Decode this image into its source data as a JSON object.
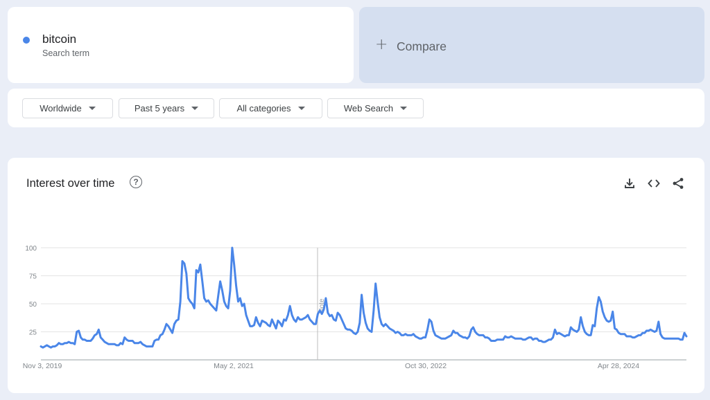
{
  "search_term": {
    "name": "bitcoin",
    "subtitle": "Search term",
    "color": "#4a86e8"
  },
  "compare": {
    "label": "Compare"
  },
  "filters": [
    {
      "label": "Worldwide"
    },
    {
      "label": "Past 5 years"
    },
    {
      "label": "All categories"
    },
    {
      "label": "Web Search"
    }
  ],
  "chart": {
    "title": "Interest over time",
    "help_icon": "help-circle-icon",
    "toolbar_icons": [
      "download-icon",
      "embed-code-icon",
      "share-icon"
    ],
    "note_marker": "Note"
  },
  "chart_data": {
    "type": "line",
    "series": [
      {
        "name": "bitcoin",
        "color": "#4a86e8",
        "values": [
          12,
          11,
          12,
          13,
          12,
          11,
          12,
          12,
          13,
          15,
          14,
          14,
          15,
          15,
          16,
          15,
          15,
          14,
          25,
          26,
          20,
          18,
          18,
          17,
          17,
          17,
          19,
          22,
          23,
          27,
          20,
          18,
          16,
          15,
          14,
          14,
          14,
          14,
          13,
          13,
          15,
          14,
          20,
          18,
          17,
          17,
          17,
          15,
          15,
          15,
          16,
          14,
          13,
          12,
          12,
          12,
          12,
          17,
          18,
          18,
          22,
          23,
          27,
          32,
          30,
          27,
          24,
          32,
          35,
          36,
          52,
          88,
          86,
          77,
          55,
          52,
          50,
          46,
          80,
          78,
          85,
          70,
          55,
          52,
          53,
          50,
          48,
          46,
          44,
          57,
          70,
          62,
          52,
          48,
          46,
          62,
          100,
          85,
          66,
          52,
          55,
          48,
          50,
          40,
          35,
          30,
          30,
          31,
          38,
          33,
          30,
          35,
          34,
          33,
          31,
          30,
          36,
          32,
          28,
          35,
          33,
          30,
          36,
          35,
          40,
          48,
          40,
          36,
          34,
          38,
          36,
          36,
          37,
          38,
          40,
          36,
          34,
          32,
          32,
          41,
          44,
          41,
          45,
          55,
          42,
          39,
          40,
          36,
          35,
          42,
          40,
          36,
          32,
          28,
          27,
          27,
          26,
          24,
          23,
          25,
          33,
          58,
          42,
          33,
          28,
          26,
          25,
          44,
          68,
          52,
          38,
          32,
          30,
          32,
          30,
          28,
          27,
          26,
          24,
          25,
          24,
          22,
          22,
          23,
          22,
          22,
          22,
          23,
          21,
          20,
          19,
          19,
          20,
          20,
          27,
          36,
          34,
          26,
          22,
          21,
          20,
          19,
          19,
          19,
          20,
          21,
          22,
          26,
          24,
          24,
          22,
          21,
          20,
          20,
          19,
          21,
          27,
          29,
          25,
          23,
          22,
          22,
          22,
          20,
          20,
          19,
          17,
          17,
          17,
          18,
          18,
          18,
          18,
          21,
          20,
          20,
          21,
          20,
          19,
          19,
          19,
          19,
          18,
          18,
          19,
          20,
          20,
          18,
          19,
          19,
          17,
          17,
          16,
          16,
          17,
          18,
          18,
          20,
          27,
          23,
          24,
          23,
          22,
          21,
          22,
          22,
          29,
          27,
          26,
          25,
          27,
          38,
          30,
          25,
          23,
          22,
          22,
          31,
          30,
          46,
          56,
          52,
          43,
          38,
          35,
          34,
          35,
          43,
          28,
          27,
          24,
          23,
          23,
          23,
          21,
          21,
          21,
          20,
          20,
          21,
          22,
          22,
          24,
          24,
          26,
          26,
          27,
          26,
          25,
          26,
          34,
          23,
          20,
          19,
          19,
          19,
          19,
          19,
          19,
          19,
          19,
          18,
          18,
          24,
          21
        ]
      }
    ],
    "x_ticks": [
      "Nov 3, 2019",
      "May 2, 2021",
      "Oct 30, 2022",
      "Apr 28, 2024"
    ],
    "y_ticks": [
      25,
      50,
      75,
      100
    ],
    "ylim": [
      0,
      100
    ],
    "grid": true
  }
}
